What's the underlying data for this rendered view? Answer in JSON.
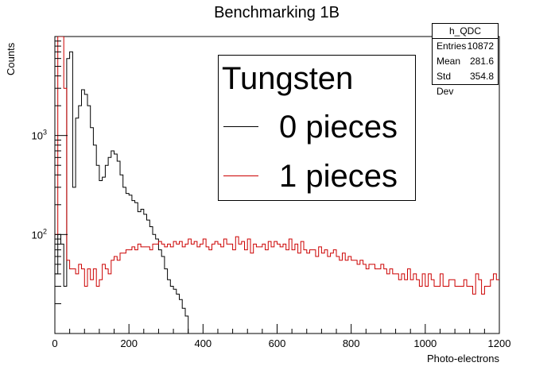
{
  "chart_data": {
    "type": "histogram",
    "title": "Benchmarking 1B",
    "xlabel": "Photo-electrons",
    "ylabel": "Counts",
    "xlim": [
      0,
      1200
    ],
    "ylim_log": [
      10,
      10000
    ],
    "y_scale": "log",
    "x_ticks": [
      "0",
      "200",
      "400",
      "600",
      "800",
      "1000",
      "1200"
    ],
    "y_tick_labels": [
      {
        "base": "10",
        "exp": "2",
        "value": 100
      },
      {
        "base": "10",
        "exp": "3",
        "value": 1000
      }
    ],
    "bin_width": 8,
    "series": [
      {
        "name": "0 pieces",
        "color": "#000000",
        "x_start": 0,
        "values": [
          40,
          100,
          80,
          30,
          6000,
          7000,
          300,
          1500,
          2000,
          2900,
          2600,
          2000,
          1200,
          800,
          500,
          350,
          380,
          500,
          600,
          700,
          650,
          550,
          400,
          300,
          260,
          250,
          220,
          210,
          170,
          180,
          160,
          140,
          120,
          100,
          90,
          70,
          60,
          45,
          35,
          30,
          28,
          25,
          22,
          18,
          15,
          10,
          8,
          6,
          4,
          3,
          2,
          1,
          1
        ]
      },
      {
        "name": "1 pieces",
        "color": "#cc0000",
        "x_start": 0,
        "values": [
          100,
          50000,
          40000,
          3000,
          55,
          45,
          45,
          40,
          50,
          45,
          30,
          45,
          35,
          45,
          30,
          35,
          50,
          45,
          40,
          55,
          60,
          55,
          65,
          65,
          70,
          70,
          75,
          70,
          80,
          75,
          75,
          75,
          70,
          80,
          80,
          85,
          80,
          75,
          80,
          75,
          85,
          80,
          85,
          75,
          80,
          90,
          80,
          85,
          75,
          80,
          90,
          75,
          70,
          80,
          85,
          80,
          75,
          90,
          80,
          80,
          70,
          95,
          80,
          85,
          70,
          90,
          65,
          80,
          75,
          75,
          80,
          70,
          85,
          75,
          85,
          80,
          75,
          80,
          70,
          90,
          70,
          80,
          65,
          85,
          70,
          65,
          70,
          70,
          60,
          75,
          65,
          70,
          60,
          65,
          70,
          60,
          55,
          65,
          55,
          60,
          55,
          55,
          50,
          55,
          50,
          45,
          50,
          50,
          45,
          45,
          50,
          45,
          40,
          45,
          40,
          40,
          35,
          40,
          35,
          45,
          35,
          40,
          35,
          30,
          40,
          30,
          40,
          35,
          30,
          30,
          40,
          30,
          30,
          35,
          35,
          30,
          30,
          30,
          35,
          30,
          30,
          25,
          40,
          35,
          25,
          30,
          30,
          35,
          40,
          35
        ]
      }
    ],
    "legend": {
      "header": "Tungsten",
      "entries": [
        "0 pieces",
        "1 pieces"
      ],
      "placement": "top-center"
    },
    "stats": {
      "title": "h_QDC",
      "rows": [
        {
          "label": "Entries",
          "value": "10872"
        },
        {
          "label": "Mean",
          "value": "281.6"
        },
        {
          "label": "Std Dev",
          "value": "354.8"
        }
      ]
    }
  }
}
